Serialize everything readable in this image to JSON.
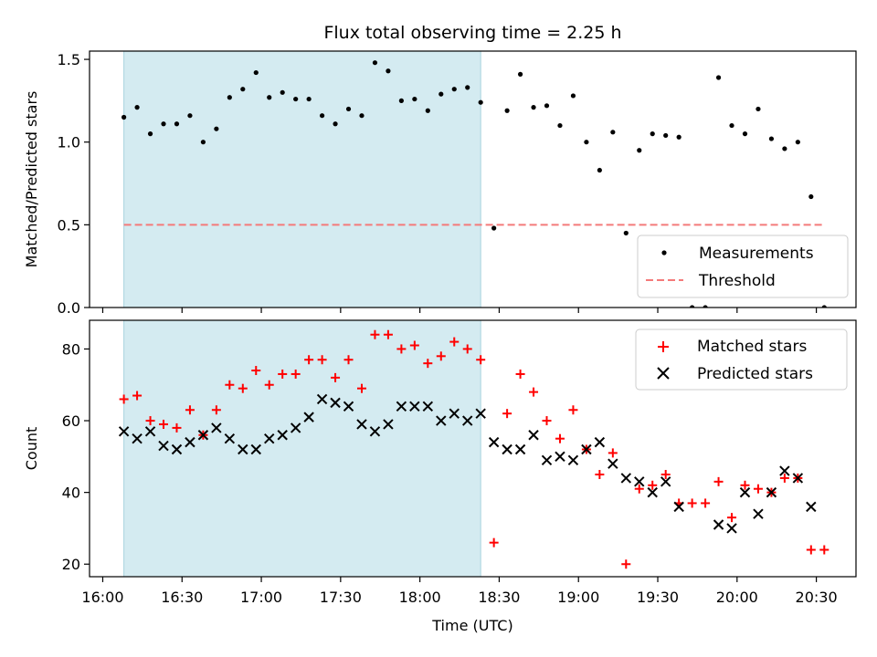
{
  "chart_data": [
    {
      "type": "scatter",
      "title": "Flux total observing time = 2.25 h",
      "xlabel": "",
      "ylabel": "Matched/Predicted stars",
      "ylim": [
        0,
        1.55
      ],
      "yticks": [
        0.0,
        0.5,
        1.0,
        1.5
      ],
      "ytick_labels": [
        "0.0",
        "0.5",
        "1.0",
        "1.5"
      ],
      "xlim_minutes": [
        955,
        1245
      ],
      "highlight_span": [
        "16:08",
        "18:23"
      ],
      "highlight_color": "#d4ebf1",
      "legend": {
        "placement": "lower-right",
        "entries": [
          "Measurements",
          "Threshold"
        ]
      },
      "threshold": {
        "name": "Threshold",
        "value": 0.5,
        "x_range": [
          "16:08",
          "20:33"
        ],
        "color": "#f47a7a"
      },
      "series": [
        {
          "name": "Measurements",
          "color": "#000000",
          "x": [
            "16:08",
            "16:13",
            "16:18",
            "16:23",
            "16:28",
            "16:33",
            "16:38",
            "16:43",
            "16:48",
            "16:53",
            "16:58",
            "17:03",
            "17:08",
            "17:13",
            "17:18",
            "17:23",
            "17:28",
            "17:33",
            "17:38",
            "17:43",
            "17:48",
            "17:53",
            "17:58",
            "18:03",
            "18:08",
            "18:13",
            "18:18",
            "18:23",
            "18:28",
            "18:33",
            "18:38",
            "18:43",
            "18:48",
            "18:53",
            "18:58",
            "19:03",
            "19:08",
            "19:13",
            "19:18",
            "19:23",
            "19:28",
            "19:33",
            "19:38",
            "19:43",
            "19:48",
            "19:53",
            "19:58",
            "20:03",
            "20:08",
            "20:13",
            "20:18",
            "20:23",
            "20:28",
            "20:33"
          ],
          "y": [
            1.15,
            1.21,
            1.05,
            1.11,
            1.11,
            1.16,
            1.0,
            1.08,
            1.27,
            1.32,
            1.42,
            1.27,
            1.3,
            1.26,
            1.26,
            1.16,
            1.11,
            1.2,
            1.16,
            1.48,
            1.43,
            1.25,
            1.26,
            1.19,
            1.29,
            1.32,
            1.33,
            1.24,
            0.48,
            1.19,
            1.41,
            1.21,
            1.22,
            1.1,
            1.28,
            1.0,
            0.83,
            1.06,
            0.45,
            0.95,
            1.05,
            1.04,
            1.03,
            0.0,
            0.0,
            1.39,
            1.1,
            1.05,
            1.2,
            1.02,
            0.96,
            1.0,
            0.67,
            0.0
          ]
        }
      ]
    },
    {
      "type": "scatter",
      "title": "",
      "xlabel": "Time (UTC)",
      "ylabel": "Count",
      "ylim": [
        16.5,
        88
      ],
      "yticks": [
        20,
        40,
        60,
        80
      ],
      "ytick_labels": [
        "20",
        "40",
        "60",
        "80"
      ],
      "xlim_minutes": [
        955,
        1245
      ],
      "xticks": [
        "16:00",
        "16:30",
        "17:00",
        "17:30",
        "18:00",
        "18:30",
        "19:00",
        "19:30",
        "20:00",
        "20:30"
      ],
      "highlight_span": [
        "16:08",
        "18:23"
      ],
      "highlight_color": "#d4ebf1",
      "legend": {
        "placement": "top-right",
        "entries": [
          "Matched stars",
          "Predicted stars"
        ]
      },
      "series": [
        {
          "name": "Matched stars",
          "marker": "plus",
          "color": "#ff0000",
          "x": [
            "16:08",
            "16:13",
            "16:18",
            "16:23",
            "16:28",
            "16:33",
            "16:38",
            "16:43",
            "16:48",
            "16:53",
            "16:58",
            "17:03",
            "17:08",
            "17:13",
            "17:18",
            "17:23",
            "17:28",
            "17:33",
            "17:38",
            "17:43",
            "17:48",
            "17:53",
            "17:58",
            "18:03",
            "18:08",
            "18:13",
            "18:18",
            "18:23",
            "18:28",
            "18:33",
            "18:38",
            "18:43",
            "18:48",
            "18:53",
            "18:58",
            "19:03",
            "19:08",
            "19:13",
            "19:18",
            "19:23",
            "19:28",
            "19:33",
            "19:38",
            "19:43",
            "19:48",
            "19:53",
            "19:58",
            "20:03",
            "20:08",
            "20:13",
            "20:18",
            "20:23",
            "20:28",
            "20:33"
          ],
          "y": [
            66,
            67,
            60,
            59,
            58,
            63,
            56,
            63,
            70,
            69,
            74,
            70,
            73,
            73,
            77,
            77,
            72,
            77,
            69,
            84,
            84,
            80,
            81,
            76,
            78,
            82,
            80,
            77,
            26,
            62,
            73,
            68,
            60,
            55,
            63,
            52,
            45,
            51,
            20,
            41,
            42,
            45,
            37,
            37,
            37,
            43,
            33,
            42,
            41,
            40,
            44,
            44,
            24,
            24
          ]
        },
        {
          "name": "Predicted stars",
          "marker": "x",
          "color": "#000000",
          "x": [
            "16:08",
            "16:13",
            "16:18",
            "16:23",
            "16:28",
            "16:33",
            "16:38",
            "16:43",
            "16:48",
            "16:53",
            "16:58",
            "17:03",
            "17:08",
            "17:13",
            "17:18",
            "17:23",
            "17:28",
            "17:33",
            "17:38",
            "17:43",
            "17:48",
            "17:53",
            "17:58",
            "18:03",
            "18:08",
            "18:13",
            "18:18",
            "18:23",
            "18:28",
            "18:33",
            "18:38",
            "18:43",
            "18:48",
            "18:53",
            "18:58",
            "19:03",
            "19:08",
            "19:13",
            "19:18",
            "19:23",
            "19:28",
            "19:33",
            "19:38",
            "19:53",
            "19:58",
            "20:03",
            "20:08",
            "20:13",
            "20:18",
            "20:23",
            "20:28"
          ],
          "y": [
            57,
            55,
            57,
            53,
            52,
            54,
            56,
            58,
            55,
            52,
            52,
            55,
            56,
            58,
            61,
            66,
            65,
            64,
            59,
            57,
            59,
            64,
            64,
            64,
            60,
            62,
            60,
            62,
            54,
            52,
            52,
            56,
            49,
            50,
            49,
            52,
            54,
            48,
            44,
            43,
            40,
            43,
            36,
            31,
            30,
            40,
            34,
            40,
            46,
            44,
            36
          ]
        }
      ]
    }
  ]
}
